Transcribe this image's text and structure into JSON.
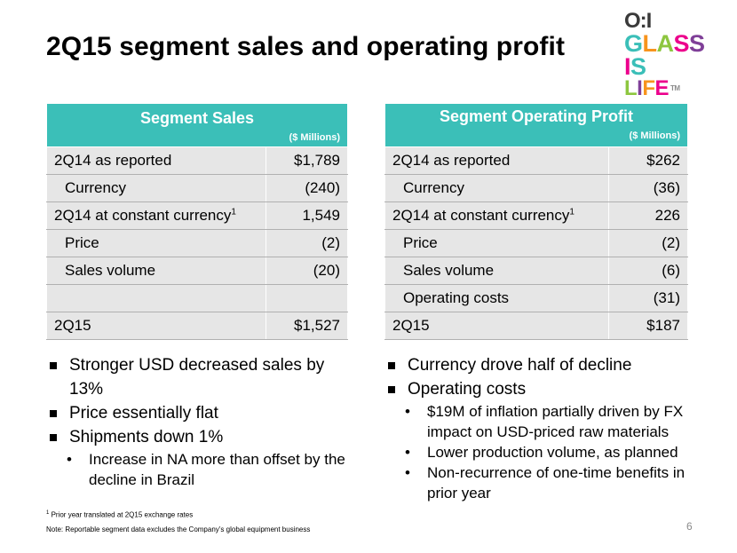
{
  "title": "2Q15 segment sales and operating profit",
  "logo": {
    "o": "O",
    "i": "I",
    "line1": "GLASS",
    "line2": "IS",
    "line3": "LIFE",
    "tm": "TM",
    "colors": {
      "g": "#3bbfb8",
      "l": "#f7941d",
      "a": "#8dc63f",
      "s1": "#ec008c",
      "s2": "#7f3f98",
      "i": "#ec008c",
      "s3": "#3bbfb8",
      "l3": "#8dc63f",
      "f": "#f7941d",
      "e": "#ec008c"
    }
  },
  "sales": {
    "header": "Segment Sales",
    "unit": "($ Millions)",
    "rows": [
      {
        "label": "2Q14 as reported",
        "value": "$1,789"
      },
      {
        "label": "Currency",
        "value": "(240)"
      },
      {
        "label": "2Q14 at constant currency",
        "sup": "1",
        "value": "1,549"
      },
      {
        "label": "Price",
        "value": "(2)"
      },
      {
        "label": "Sales volume",
        "value": "(20)"
      },
      {
        "label": "",
        "value": ""
      },
      {
        "label": "2Q15",
        "value": "$1,527"
      }
    ]
  },
  "profit": {
    "header": "Segment Operating Profit",
    "unit": "($ Millions)",
    "rows": [
      {
        "label": "2Q14 as reported",
        "value": "$262"
      },
      {
        "label": "Currency",
        "value": "(36)"
      },
      {
        "label": "2Q14 at constant currency",
        "sup": "1",
        "value": "226"
      },
      {
        "label": "Price",
        "value": "(2)"
      },
      {
        "label": "Sales volume",
        "value": "(6)"
      },
      {
        "label": "Operating costs",
        "value": "(31)"
      },
      {
        "label": "2Q15",
        "value": "$187"
      }
    ]
  },
  "bullets_left": {
    "b1": "Stronger USD decreased sales by 13%",
    "b2": "Price essentially flat",
    "b3": "Shipments down 1%",
    "s1": "Increase in NA more than offset by the decline in Brazil"
  },
  "bullets_right": {
    "b1": "Currency drove half of decline",
    "b2": "Operating costs",
    "s1": "$19M of inflation partially driven by FX impact on USD-priced raw materials",
    "s2": "Lower production volume, as planned",
    "s3": "Non-recurrence of one-time benefits in prior year"
  },
  "footnote1_mark": "1",
  "footnote1": "Prior year translated at 2Q15 exchange rates",
  "footnote2": "Note:  Reportable segment data excludes the Company’s global equipment business",
  "page_number": "6"
}
